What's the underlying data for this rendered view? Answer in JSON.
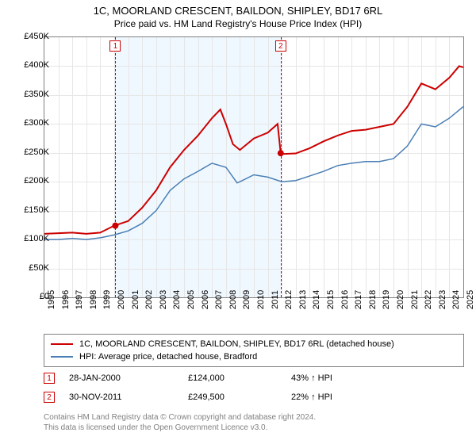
{
  "title": {
    "line1": "1C, MOORLAND CRESCENT, BAILDON, SHIPLEY, BD17 6RL",
    "line2": "Price paid vs. HM Land Registry's House Price Index (HPI)"
  },
  "chart": {
    "type": "line",
    "background_color": "#ffffff",
    "grid_color": "#e6e6e6",
    "border_color": "#808080",
    "ylim": [
      0,
      450000
    ],
    "ytick_step": 50000,
    "ytick_labels": [
      "£0",
      "£50K",
      "£100K",
      "£150K",
      "£200K",
      "£250K",
      "£300K",
      "£350K",
      "£400K",
      "£450K"
    ],
    "xlim": [
      1995,
      2025
    ],
    "xtick_step": 1,
    "xtick_labels": [
      "1995",
      "1996",
      "1997",
      "1998",
      "1999",
      "2000",
      "2001",
      "2002",
      "2003",
      "2004",
      "2005",
      "2006",
      "2007",
      "2008",
      "2009",
      "2010",
      "2011",
      "2012",
      "2013",
      "2014",
      "2015",
      "2016",
      "2017",
      "2018",
      "2019",
      "2020",
      "2021",
      "2022",
      "2023",
      "2024",
      "2025"
    ],
    "shade_region": {
      "from": 2000.08,
      "to": 2011.92,
      "color": "#f0f8ff"
    },
    "vlines": [
      {
        "x": 2000.08,
        "color": "#cc0000",
        "label_num": "1"
      },
      {
        "x": 2011.92,
        "color": "#cc0000",
        "label_num": "2"
      }
    ],
    "markers": [
      {
        "x": 2000.08,
        "y": 124000,
        "color": "#cc0000"
      },
      {
        "x": 2011.92,
        "y": 249500,
        "color": "#cc0000"
      }
    ],
    "series": [
      {
        "name": "price_paid",
        "color": "#cc0000",
        "line_width": 2,
        "data": [
          [
            1995,
            110000
          ],
          [
            1996,
            111000
          ],
          [
            1997,
            112000
          ],
          [
            1998,
            110000
          ],
          [
            1999,
            112000
          ],
          [
            2000,
            124000
          ],
          [
            2001,
            132000
          ],
          [
            2002,
            155000
          ],
          [
            2003,
            185000
          ],
          [
            2004,
            225000
          ],
          [
            2005,
            255000
          ],
          [
            2006,
            280000
          ],
          [
            2007,
            310000
          ],
          [
            2007.6,
            325000
          ],
          [
            2008,
            300000
          ],
          [
            2008.5,
            265000
          ],
          [
            2009,
            255000
          ],
          [
            2010,
            275000
          ],
          [
            2011,
            285000
          ],
          [
            2011.7,
            300000
          ],
          [
            2011.92,
            249500
          ],
          [
            2012,
            248000
          ],
          [
            2013,
            249000
          ],
          [
            2014,
            258000
          ],
          [
            2015,
            270000
          ],
          [
            2016,
            280000
          ],
          [
            2017,
            288000
          ],
          [
            2018,
            290000
          ],
          [
            2019,
            295000
          ],
          [
            2020,
            300000
          ],
          [
            2021,
            330000
          ],
          [
            2022,
            370000
          ],
          [
            2023,
            360000
          ],
          [
            2024,
            380000
          ],
          [
            2024.7,
            400000
          ],
          [
            2025,
            398000
          ]
        ]
      },
      {
        "name": "hpi",
        "color": "#4a7fb5",
        "line_width": 1.5,
        "data": [
          [
            1995,
            100000
          ],
          [
            1996,
            100000
          ],
          [
            1997,
            102000
          ],
          [
            1998,
            100000
          ],
          [
            1999,
            103000
          ],
          [
            2000,
            108000
          ],
          [
            2001,
            115000
          ],
          [
            2002,
            128000
          ],
          [
            2003,
            150000
          ],
          [
            2004,
            185000
          ],
          [
            2005,
            205000
          ],
          [
            2006,
            218000
          ],
          [
            2007,
            232000
          ],
          [
            2008,
            225000
          ],
          [
            2008.8,
            198000
          ],
          [
            2009,
            200000
          ],
          [
            2010,
            212000
          ],
          [
            2011,
            208000
          ],
          [
            2012,
            200000
          ],
          [
            2013,
            202000
          ],
          [
            2014,
            210000
          ],
          [
            2015,
            218000
          ],
          [
            2016,
            228000
          ],
          [
            2017,
            232000
          ],
          [
            2018,
            235000
          ],
          [
            2019,
            235000
          ],
          [
            2020,
            240000
          ],
          [
            2021,
            262000
          ],
          [
            2022,
            300000
          ],
          [
            2023,
            295000
          ],
          [
            2024,
            310000
          ],
          [
            2025,
            330000
          ]
        ]
      }
    ]
  },
  "legend": {
    "items": [
      {
        "color": "#cc0000",
        "label": "1C, MOORLAND CRESCENT, BAILDON, SHIPLEY, BD17 6RL (detached house)"
      },
      {
        "color": "#4a7fb5",
        "label": "HPI: Average price, detached house, Bradford"
      }
    ]
  },
  "marker_rows": [
    {
      "num": "1",
      "color": "#cc0000",
      "date": "28-JAN-2000",
      "price": "£124,000",
      "pct": "43% ↑ HPI"
    },
    {
      "num": "2",
      "color": "#cc0000",
      "date": "30-NOV-2011",
      "price": "£249,500",
      "pct": "22% ↑ HPI"
    }
  ],
  "footer": {
    "line1": "Contains HM Land Registry data © Crown copyright and database right 2024.",
    "line2": "This data is licensed under the Open Government Licence v3.0."
  }
}
